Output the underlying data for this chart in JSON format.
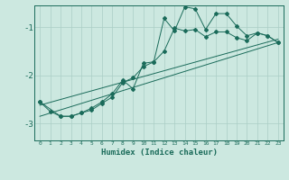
{
  "xlabel": "Humidex (Indice chaleur)",
  "bg_color": "#cce8e0",
  "line_color": "#1a6b5a",
  "grid_color": "#aacec5",
  "xlim": [
    -0.5,
    23.5
  ],
  "ylim": [
    -3.35,
    -0.55
  ],
  "yticks": [
    -3,
    -2,
    -1
  ],
  "xticks": [
    0,
    1,
    2,
    3,
    4,
    5,
    6,
    7,
    8,
    9,
    10,
    11,
    12,
    13,
    14,
    15,
    16,
    17,
    18,
    19,
    20,
    21,
    22,
    23
  ],
  "line1_x": [
    0,
    1,
    2,
    3,
    4,
    5,
    6,
    7,
    8,
    9,
    10,
    11,
    12,
    13,
    14,
    15,
    16,
    17,
    18,
    19,
    20,
    21,
    22,
    23
  ],
  "line1_y": [
    -2.55,
    -2.75,
    -2.85,
    -2.85,
    -2.78,
    -2.72,
    -2.58,
    -2.45,
    -2.15,
    -2.05,
    -1.82,
    -1.72,
    -1.5,
    -1.02,
    -1.08,
    -1.05,
    -1.2,
    -1.1,
    -1.1,
    -1.22,
    -1.28,
    -1.12,
    -1.18,
    -1.32
  ],
  "line2_x": [
    0,
    2,
    3,
    4,
    5,
    6,
    7,
    8,
    9,
    10,
    11,
    12,
    13,
    14,
    15,
    16,
    17,
    18,
    19,
    20,
    21,
    22,
    23
  ],
  "line2_y": [
    -2.55,
    -2.85,
    -2.85,
    -2.78,
    -2.68,
    -2.55,
    -2.38,
    -2.1,
    -2.28,
    -1.75,
    -1.72,
    -0.82,
    -1.08,
    -0.58,
    -0.62,
    -1.05,
    -0.72,
    -0.72,
    -0.98,
    -1.18,
    -1.12,
    -1.18,
    -1.32
  ],
  "line3_x": [
    0,
    23
  ],
  "line3_y": [
    -2.62,
    -1.25
  ],
  "line4_x": [
    0,
    23
  ],
  "line4_y": [
    -2.85,
    -1.32
  ]
}
